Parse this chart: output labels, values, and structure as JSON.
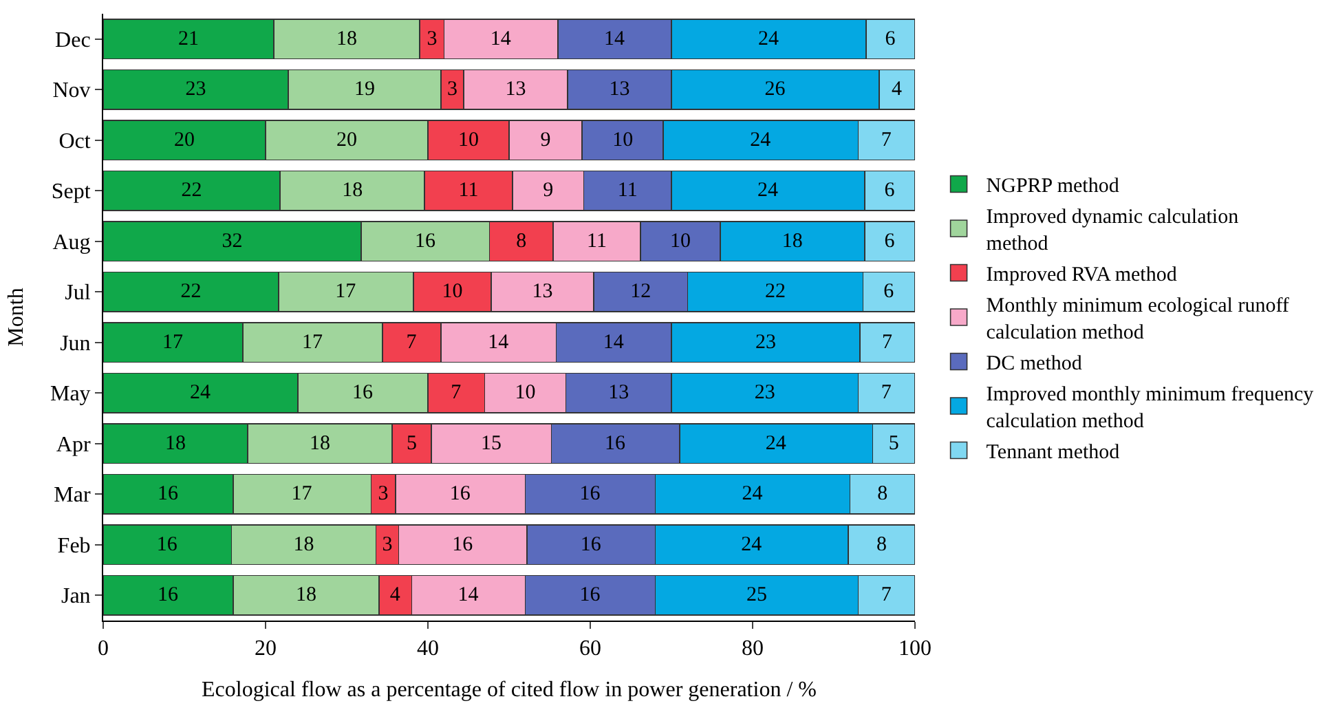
{
  "chart_data": {
    "type": "bar",
    "orientation": "horizontal",
    "stacked": true,
    "xlabel": "Ecological flow as a percentage of cited flow in power generation / %",
    "ylabel": "Month",
    "categories": [
      "Dec",
      "Nov",
      "Oct",
      "Sept",
      "Aug",
      "Jul",
      "Jun",
      "May",
      "Apr",
      "Mar",
      "Feb",
      "Jan"
    ],
    "series": [
      {
        "name": "NGPRP method",
        "color": "#10a84a",
        "values": [
          21,
          22.8,
          20,
          21.8,
          31.8,
          21.6,
          17.2,
          24,
          17.8,
          16,
          15.8,
          16
        ],
        "value_labels": [
          "21",
          "23",
          "20",
          "22",
          "32",
          "22",
          "17",
          "24",
          "18",
          "16",
          "16",
          "16"
        ]
      },
      {
        "name": "Improved dynamic calculation method",
        "color": "#a0d59c",
        "values": [
          18,
          18.8,
          20,
          17.8,
          15.8,
          16.6,
          17.2,
          16,
          17.8,
          17,
          17.8,
          18
        ],
        "value_labels": [
          "18",
          "19",
          "20",
          "18",
          "16",
          "17",
          "17",
          "16",
          "18",
          "17",
          "18",
          "18"
        ]
      },
      {
        "name": "Improved RVA method",
        "color": "#f2404f",
        "values": [
          3,
          2.8,
          10,
          10.8,
          7.8,
          9.6,
          7.2,
          7,
          4.8,
          3,
          2.8,
          4
        ],
        "value_labels": [
          "3",
          "3",
          "10",
          "11",
          "8",
          "10",
          "7",
          "7",
          "5",
          "3",
          "3",
          "4"
        ]
      },
      {
        "name": "Monthly minimum ecological runoff calculation method",
        "color": "#f7a9c9",
        "values": [
          14,
          12.8,
          9,
          8.8,
          10.8,
          12.6,
          14.2,
          10,
          14.8,
          16,
          15.8,
          14
        ],
        "value_labels": [
          "14",
          "13",
          "9",
          "9",
          "11",
          "13",
          "14",
          "10",
          "15",
          "16",
          "16",
          "14"
        ]
      },
      {
        "name": "DC method",
        "color": "#5a6bbd",
        "values": [
          14,
          12.8,
          10,
          10.8,
          9.8,
          11.6,
          14.2,
          13,
          15.8,
          16,
          15.8,
          16
        ],
        "value_labels": [
          "14",
          "13",
          "10",
          "11",
          "10",
          "12",
          "14",
          "13",
          "16",
          "16",
          "16",
          "16"
        ]
      },
      {
        "name": "Improved monthly minimum frequency calculation method",
        "color": "#04a8e2",
        "values": [
          24,
          25.6,
          24,
          23.8,
          17.8,
          21.6,
          23.2,
          23,
          23.8,
          24,
          23.8,
          25
        ],
        "value_labels": [
          "24",
          "26",
          "24",
          "24",
          "18",
          "22",
          "23",
          "23",
          "24",
          "24",
          "24",
          "25"
        ]
      },
      {
        "name": "Tennant method",
        "color": "#80d8f2",
        "values": [
          6,
          4.4,
          7,
          6.2,
          6.2,
          6.4,
          6.8,
          7,
          5.2,
          8,
          8.2,
          7
        ],
        "value_labels": [
          "6",
          "4",
          "7",
          "6",
          "6",
          "6",
          "7",
          "7",
          "5",
          "8",
          "8",
          "7"
        ]
      }
    ],
    "xlim": [
      0,
      100
    ],
    "xticks": [
      0,
      20,
      40,
      60,
      80,
      100
    ],
    "legend": "right"
  }
}
